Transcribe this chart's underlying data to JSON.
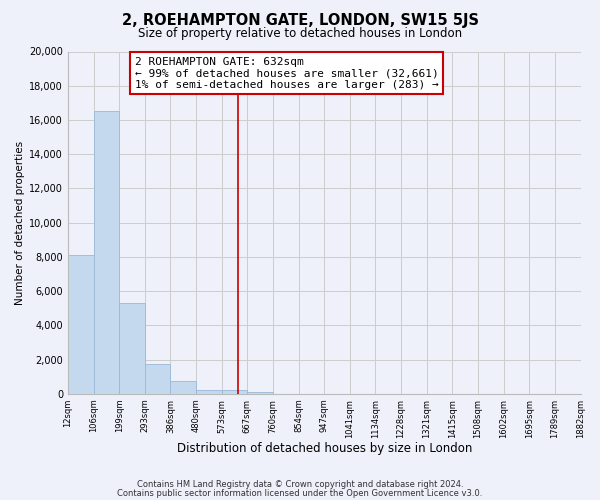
{
  "title": "2, ROEHAMPTON GATE, LONDON, SW15 5JS",
  "subtitle": "Size of property relative to detached houses in London",
  "xlabel": "Distribution of detached houses by size in London",
  "ylabel": "Number of detached properties",
  "bar_values": [
    8100,
    16500,
    5300,
    1750,
    750,
    250,
    200,
    100,
    0,
    0,
    0,
    0,
    0,
    0,
    0,
    0,
    0,
    0,
    0,
    0
  ],
  "bar_labels": [
    "12sqm",
    "106sqm",
    "199sqm",
    "293sqm",
    "386sqm",
    "480sqm",
    "573sqm",
    "667sqm",
    "760sqm",
    "854sqm",
    "947sqm",
    "1041sqm",
    "1134sqm",
    "1228sqm",
    "1321sqm",
    "1415sqm",
    "1508sqm",
    "1602sqm",
    "1695sqm",
    "1789sqm",
    "1882sqm"
  ],
  "bar_color": "#c5d9ee",
  "bar_edge_color": "#9ab8d8",
  "vline_x": 6.62,
  "vline_color": "#cc0000",
  "annotation_lines": [
    "2 ROEHAMPTON GATE: 632sqm",
    "← 99% of detached houses are smaller (32,661)",
    "1% of semi-detached houses are larger (283) →"
  ],
  "ylim": [
    0,
    20000
  ],
  "yticks": [
    0,
    2000,
    4000,
    6000,
    8000,
    10000,
    12000,
    14000,
    16000,
    18000,
    20000
  ],
  "grid_color": "#cccccc",
  "background_color": "#eef0fa",
  "plot_bg_color": "#eef0fa",
  "footer_line1": "Contains HM Land Registry data © Crown copyright and database right 2024.",
  "footer_line2": "Contains public sector information licensed under the Open Government Licence v3.0.",
  "num_bars": 20
}
